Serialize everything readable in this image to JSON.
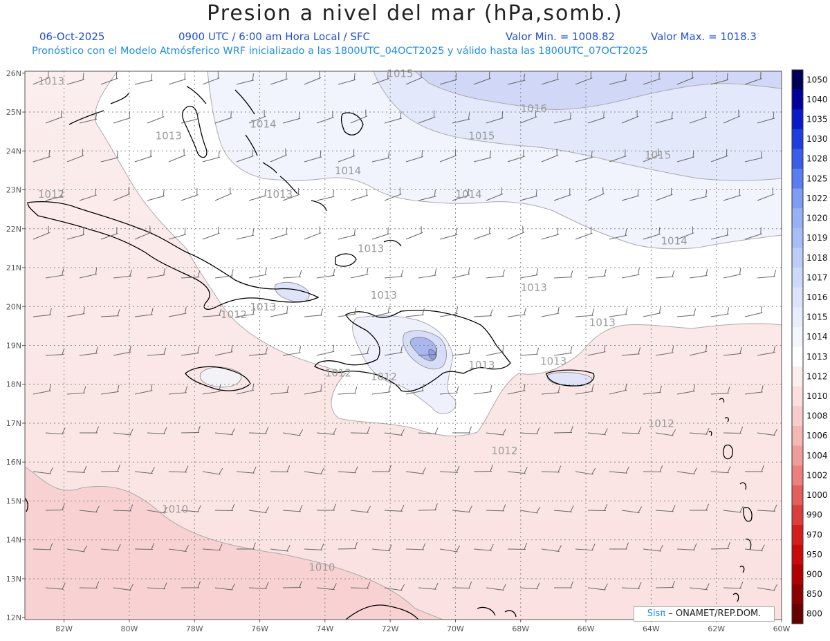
{
  "header": {
    "title": "Presion a nivel del mar (hPa,somb.)",
    "date": "06-Oct-2025",
    "time_info": "0900 UTC / 6:00 am Hora Local / SFC",
    "min_value": "Valor Min. = 1008.82",
    "max_value": "Valor Max. = 1018.3",
    "model_info": "Pronóstico con el Modelo Atmósferico WRF inicializado a las 1800UTC_04OCT2025 y válido hasta las  1800UTC_07OCT2025"
  },
  "credit": {
    "brand": "Sisπ",
    "text": " – ONAMET/REP.DOM."
  },
  "map": {
    "lat_labels": [
      "26N",
      "25N",
      "24N",
      "23N",
      "22N",
      "21N",
      "20N",
      "19N",
      "18N",
      "17N",
      "16N",
      "15N",
      "14N",
      "13N",
      "12N"
    ],
    "lon_labels": [
      "82W",
      "80W",
      "78W",
      "76W",
      "74W",
      "72W",
      "70W",
      "68W",
      "66W",
      "64W",
      "62W",
      "60W"
    ],
    "contour_labels": [
      {
        "text": "1013",
        "lon": -82.8,
        "lat": 25.7
      },
      {
        "text": "1013",
        "lon": -79.2,
        "lat": 24.3
      },
      {
        "text": "1012",
        "lon": -82.8,
        "lat": 22.8
      },
      {
        "text": "1013",
        "lon": -75.8,
        "lat": 22.8
      },
      {
        "text": "1014",
        "lon": -76.3,
        "lat": 24.6
      },
      {
        "text": "1015",
        "lon": -72.1,
        "lat": 25.9
      },
      {
        "text": "1016",
        "lon": -68.0,
        "lat": 25.0
      },
      {
        "text": "1015",
        "lon": -69.6,
        "lat": 24.3
      },
      {
        "text": "1015",
        "lon": -64.2,
        "lat": 23.8
      },
      {
        "text": "1014",
        "lon": -73.7,
        "lat": 23.4
      },
      {
        "text": "1014",
        "lon": -70.0,
        "lat": 22.8
      },
      {
        "text": "1014",
        "lon": -63.7,
        "lat": 21.6
      },
      {
        "text": "1013",
        "lon": -73.0,
        "lat": 21.4
      },
      {
        "text": "1013",
        "lon": -68.0,
        "lat": 20.4
      },
      {
        "text": "1013",
        "lon": -72.6,
        "lat": 20.2
      },
      {
        "text": "1013",
        "lon": -76.3,
        "lat": 19.9
      },
      {
        "text": "1012",
        "lon": -77.2,
        "lat": 19.7
      },
      {
        "text": "1013",
        "lon": -65.9,
        "lat": 19.5
      },
      {
        "text": "1013",
        "lon": -69.6,
        "lat": 18.4
      },
      {
        "text": "1013",
        "lon": -67.4,
        "lat": 18.5
      },
      {
        "text": "1012",
        "lon": -74.0,
        "lat": 18.2
      },
      {
        "text": "1012",
        "lon": -72.6,
        "lat": 18.1
      },
      {
        "text": "1012",
        "lon": -64.1,
        "lat": 16.9
      },
      {
        "text": "1012",
        "lon": -68.9,
        "lat": 16.2
      },
      {
        "text": "1010",
        "lon": -79.0,
        "lat": 14.7
      },
      {
        "text": "1010",
        "lon": -74.5,
        "lat": 13.2
      }
    ]
  },
  "colorbar": {
    "labels": [
      "1050",
      "1040",
      "1035",
      "1030",
      "1028",
      "1025",
      "1022",
      "1020",
      "1019",
      "1018",
      "1017",
      "1016",
      "1015",
      "1014",
      "1013",
      "1012",
      "1010",
      "1008",
      "1006",
      "1004",
      "1002",
      "1000",
      "990",
      "970",
      "950",
      "900",
      "850",
      "800"
    ],
    "colors": [
      "#00005a",
      "#00009b",
      "#0a1ac8",
      "#1e3ee0",
      "#3a5ee8",
      "#5a7ef0",
      "#7e9cf2",
      "#98b0f4",
      "#a8bdf5",
      "#bcccf7",
      "#cdd9f8",
      "#dde4fa",
      "#e9eefc",
      "#f4f6fe",
      "#ffffff",
      "#fdeeee",
      "#fcdede",
      "#f8cccc",
      "#f5b6b6",
      "#f09c9c",
      "#ec8080",
      "#e45e5e",
      "#dc3e3e",
      "#d41e1e",
      "#c80a0a",
      "#b00000",
      "#8c0000",
      "#640000"
    ]
  }
}
